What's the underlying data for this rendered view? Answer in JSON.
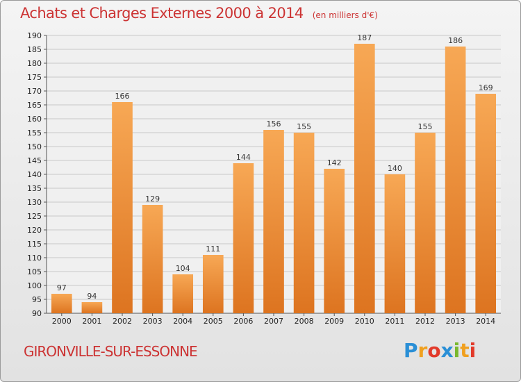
{
  "header": {
    "title": "Achats et Charges Externes 2000 à 2014",
    "unit": "(en milliers d'€)"
  },
  "footer": {
    "city": "GIRONVILLE-SUR-ESSONNE",
    "logo": "Proxiti"
  },
  "logo_letters": [
    {
      "ch": "P",
      "color": "#2a8fd6"
    },
    {
      "ch": "r",
      "color": "#f0a020"
    },
    {
      "ch": "o",
      "color": "#e23a2a"
    },
    {
      "ch": "x",
      "color": "#2a8fd6"
    },
    {
      "ch": "i",
      "color": "#7ab82e"
    },
    {
      "ch": "t",
      "color": "#f0a020"
    },
    {
      "ch": "i",
      "color": "#e23a2a"
    }
  ],
  "colors": {
    "bar_light": "#f7a855",
    "bar_dark": "#dd7420",
    "title": "#cc3333",
    "grid": "#c8c8c8"
  },
  "chart_data": {
    "type": "bar",
    "title": "Achats et Charges Externes 2000 à 2014",
    "subtitle": "(en milliers d'€)",
    "categories": [
      "2000",
      "2001",
      "2002",
      "2003",
      "2004",
      "2005",
      "2006",
      "2007",
      "2008",
      "2009",
      "2010",
      "2011",
      "2012",
      "2013",
      "2014"
    ],
    "values": [
      97,
      94,
      166,
      129,
      104,
      111,
      144,
      156,
      155,
      142,
      187,
      140,
      155,
      186,
      169
    ],
    "ylim": [
      90,
      190
    ],
    "ytick_step": 5,
    "grid": true,
    "data_labels": true
  }
}
